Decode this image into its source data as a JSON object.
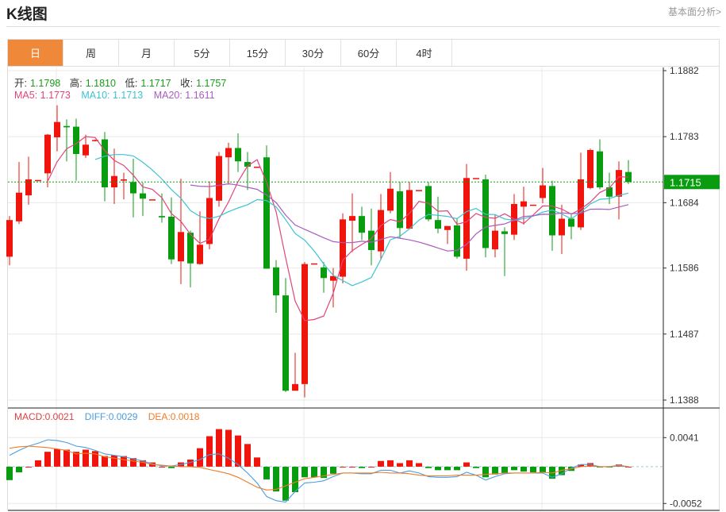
{
  "header": {
    "title": "K线图",
    "link": "基本面分析>"
  },
  "tabs": [
    {
      "label": "日",
      "active": true
    },
    {
      "label": "周"
    },
    {
      "label": "月"
    },
    {
      "label": "5分"
    },
    {
      "label": "15分"
    },
    {
      "label": "30分"
    },
    {
      "label": "60分"
    },
    {
      "label": "4时"
    }
  ],
  "ohlc_legend": {
    "open_label": "开:",
    "open": "1.1798",
    "high_label": "高:",
    "high": "1.1810",
    "low_label": "低:",
    "low": "1.1717",
    "close_label": "收:",
    "close": "1.1757"
  },
  "ma_legend": {
    "ma5": "MA5: 1.1773",
    "ma10": "MA10: 1.1713",
    "ma20": "MA20: 1.1611"
  },
  "macd_legend": {
    "macd": "MACD:0.0021",
    "diff": "DIFF:0.0029",
    "dea": "DEA:0.0018"
  },
  "colors": {
    "up": "#f0150c",
    "down": "#0a9c10",
    "ma5": "#e0457b",
    "ma10": "#3cc3d3",
    "ma20": "#a95cc0",
    "diff": "#4a9de0",
    "dea": "#f07c28",
    "active_tab": "#f0883a",
    "last_price": "#0a9c10"
  },
  "chart_data": [
    {
      "type": "candlestick",
      "fields": [
        "open",
        "high",
        "low",
        "close"
      ],
      "ohlc": [
        [
          1.1603,
          1.1664,
          1.159,
          1.1658
        ],
        [
          1.1656,
          1.1745,
          1.1652,
          1.1699
        ],
        [
          1.1695,
          1.1753,
          1.1681,
          1.1719
        ],
        [
          1.1717,
          1.1719,
          1.1717,
          1.1718
        ],
        [
          1.1728,
          1.1787,
          1.1707,
          1.1786
        ],
        [
          1.1782,
          1.183,
          1.1761,
          1.1805
        ],
        [
          1.1799,
          1.1809,
          1.1746,
          1.1797
        ],
        [
          1.1798,
          1.181,
          1.1717,
          1.1757
        ],
        [
          1.1755,
          1.1786,
          1.1751,
          1.1771
        ],
        [
          1.1777,
          1.1779,
          1.1776,
          1.1778
        ],
        [
          1.1779,
          1.179,
          1.1686,
          1.1707
        ],
        [
          1.1707,
          1.1765,
          1.1682,
          1.1724
        ],
        [
          1.1717,
          1.1729,
          1.1689,
          1.1719
        ],
        [
          1.1715,
          1.175,
          1.1662,
          1.1698
        ],
        [
          1.1698,
          1.1714,
          1.1664,
          1.169
        ],
        [
          1.1688,
          1.169,
          1.1688,
          1.1689
        ],
        [
          1.1664,
          1.1698,
          1.1654,
          1.1662
        ],
        [
          1.1663,
          1.1692,
          1.1592,
          1.1599
        ],
        [
          1.1596,
          1.172,
          1.1562,
          1.164
        ],
        [
          1.1639,
          1.1642,
          1.1557,
          1.1593
        ],
        [
          1.1592,
          1.1671,
          1.1591,
          1.1621
        ],
        [
          1.1622,
          1.1716,
          1.1614,
          1.1691
        ],
        [
          1.1687,
          1.176,
          1.1678,
          1.1754
        ],
        [
          1.1752,
          1.1774,
          1.1711,
          1.1766
        ],
        [
          1.1766,
          1.1788,
          1.173,
          1.1746
        ],
        [
          1.1745,
          1.176,
          1.1703,
          1.1738
        ],
        [
          1.1737,
          1.1739,
          1.1737,
          1.1738
        ],
        [
          1.1752,
          1.177,
          1.1585,
          1.1585
        ],
        [
          1.1587,
          1.1598,
          1.1519,
          1.1545
        ],
        [
          1.1545,
          1.1571,
          1.14,
          1.1402
        ],
        [
          1.1402,
          1.1459,
          1.1402,
          1.1412
        ],
        [
          1.1412,
          1.1595,
          1.1392,
          1.1592
        ],
        [
          1.1592,
          1.1594,
          1.1592,
          1.1593
        ],
        [
          1.1587,
          1.1595,
          1.1549,
          1.1571
        ],
        [
          1.1567,
          1.1586,
          1.1527,
          1.1574
        ],
        [
          1.1573,
          1.1668,
          1.1563,
          1.1659
        ],
        [
          1.1657,
          1.1698,
          1.161,
          1.1664
        ],
        [
          1.1664,
          1.1678,
          1.1628,
          1.1639
        ],
        [
          1.1642,
          1.1675,
          1.159,
          1.1613
        ],
        [
          1.1611,
          1.1697,
          1.1598,
          1.1673
        ],
        [
          1.1672,
          1.173,
          1.1668,
          1.1705
        ],
        [
          1.1701,
          1.1715,
          1.1631,
          1.1646
        ],
        [
          1.1645,
          1.1715,
          1.1644,
          1.1703
        ],
        [
          1.1702,
          1.1704,
          1.1702,
          1.1703
        ],
        [
          1.1709,
          1.1715,
          1.1656,
          1.1659
        ],
        [
          1.1658,
          1.1693,
          1.1638,
          1.1645
        ],
        [
          1.1643,
          1.1649,
          1.1622,
          1.1649
        ],
        [
          1.165,
          1.1661,
          1.16,
          1.1603
        ],
        [
          1.16,
          1.1742,
          1.1582,
          1.1721
        ],
        [
          1.172,
          1.1722,
          1.172,
          1.1721
        ],
        [
          1.1719,
          1.1726,
          1.1602,
          1.1616
        ],
        [
          1.1614,
          1.1666,
          1.1602,
          1.1642
        ],
        [
          1.1641,
          1.1647,
          1.1574,
          1.1637
        ],
        [
          1.1636,
          1.1697,
          1.1628,
          1.1682
        ],
        [
          1.1678,
          1.1708,
          1.1651,
          1.1686
        ],
        [
          1.168,
          1.1682,
          1.168,
          1.1681
        ],
        [
          1.1691,
          1.1736,
          1.1683,
          1.171
        ],
        [
          1.1709,
          1.1717,
          1.1612,
          1.1635
        ],
        [
          1.1635,
          1.1681,
          1.1607,
          1.166
        ],
        [
          1.166,
          1.1666,
          1.1629,
          1.1648
        ],
        [
          1.1647,
          1.1759,
          1.1643,
          1.1719
        ],
        [
          1.1706,
          1.1765,
          1.1704,
          1.1763
        ],
        [
          1.1761,
          1.1779,
          1.1704,
          1.1707
        ],
        [
          1.1707,
          1.1729,
          1.1682,
          1.1693
        ],
        [
          1.1693,
          1.1746,
          1.1659,
          1.1733
        ],
        [
          1.173,
          1.1748,
          1.1712,
          1.1715
        ]
      ],
      "moving_averages": [
        5,
        10,
        20
      ],
      "y_ticks": [
        "1.1882",
        "1.1783",
        "1.1684",
        "1.1586",
        "1.1487",
        "1.1388"
      ],
      "ylim": [
        1.1388,
        1.1882
      ],
      "last_price": "1.1715",
      "grid": true
    },
    {
      "type": "bar",
      "macd": [
        -0.0019,
        -0.0008,
        0,
        0.0009,
        0.0021,
        0.0025,
        0.0024,
        0.0021,
        0.0024,
        0.0022,
        0.0015,
        0.0016,
        0.0015,
        0.0012,
        0.0009,
        0.0006,
        0,
        -0.0002,
        0.0006,
        0.001,
        0.0026,
        0.0043,
        0.0053,
        0.0052,
        0.0044,
        0.0032,
        0.0013,
        -0.0018,
        -0.0035,
        -0.0048,
        -0.0036,
        -0.0015,
        -0.0015,
        -0.0016,
        -0.001,
        0,
        0,
        -0.0002,
        0,
        0.0008,
        0.0009,
        0.0005,
        0.0009,
        0.0005,
        -0.0002,
        -0.0005,
        -0.0005,
        -0.0005,
        0.0006,
        -0.0002,
        -0.0015,
        -0.0011,
        -0.0009,
        -0.0005,
        -0.0007,
        -0.0008,
        -0.0008,
        -0.0017,
        -0.0012,
        -0.0006,
        0.0003,
        0.0005,
        -0.0001,
        -0.0001,
        0.0003,
        0
      ],
      "diff": [
        0.0016,
        0.0023,
        0.0029,
        0.0033,
        0.0038,
        0.0037,
        0.0034,
        0.0029,
        0.0027,
        0.0023,
        0.0018,
        0.0016,
        0.0014,
        0.0011,
        0.0008,
        0.0004,
        0.0001,
        0.0001,
        0.0003,
        0.0006,
        0.001,
        0.0017,
        0.0018,
        0.0012,
        0.0003,
        -0.0009,
        -0.0023,
        -0.0042,
        -0.0048,
        -0.005,
        -0.0035,
        -0.0023,
        -0.0022,
        -0.002,
        -0.0014,
        -0.0009,
        -0.0009,
        -0.001,
        -0.001,
        -0.0005,
        -0.0005,
        -0.0009,
        -0.0006,
        -0.0009,
        -0.0014,
        -0.0015,
        -0.0015,
        -0.0014,
        -0.0008,
        -0.0012,
        -0.0019,
        -0.0014,
        -0.001,
        -0.0009,
        -0.0009,
        -0.0009,
        -0.0009,
        -0.0015,
        -0.001,
        -0.0002,
        0.0003,
        0.0003,
        0,
        0,
        0.0002,
        0
      ],
      "dea": [
        0.0026,
        0.0028,
        0.0029,
        0.0028,
        0.0027,
        0.0025,
        0.0023,
        0.0018,
        0.0019,
        0.0018,
        0.0014,
        0.0012,
        0.001,
        0.0008,
        0.0006,
        0.0003,
        0.0002,
        0.0001,
        0,
        0,
        -0.0001,
        -0.0004,
        -0.0007,
        -0.001,
        -0.0015,
        -0.0022,
        -0.0029,
        -0.0033,
        -0.0032,
        -0.0027,
        -0.0022,
        -0.0017,
        -0.0015,
        -0.0013,
        -0.0011,
        -0.0009,
        -0.0009,
        -0.0009,
        -0.0009,
        -0.0008,
        -0.0009,
        -0.0009,
        -0.001,
        -0.0012,
        -0.0013,
        -0.0013,
        -0.0013,
        -0.0012,
        -0.0012,
        -0.0012,
        -0.0011,
        -0.001,
        -0.0009,
        -0.0009,
        -0.0009,
        -0.0009,
        -0.0008,
        -0.0009,
        -0.0005,
        -0.0003,
        0,
        0.0001,
        0,
        0,
        0.0001,
        0
      ],
      "y_ticks": [
        "0.0041",
        "-0.0052"
      ],
      "ylim": [
        -0.0052,
        0.0041
      ]
    }
  ]
}
